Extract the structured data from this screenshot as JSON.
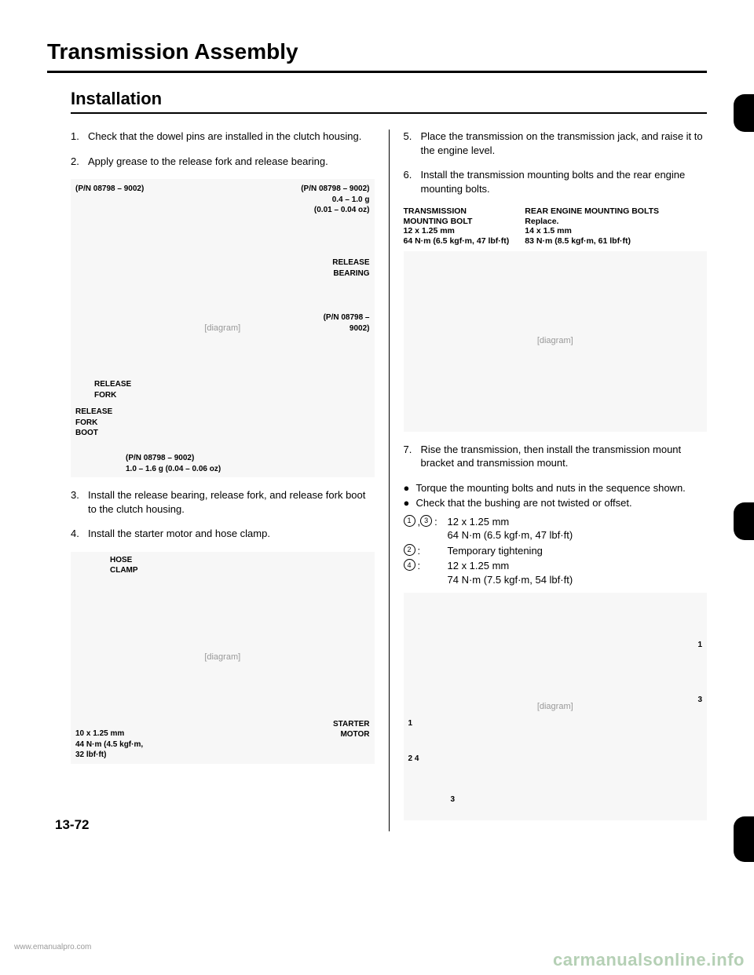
{
  "title": "Transmission Assembly",
  "section": "Installation",
  "page_number": "13-72",
  "watermark_left": "www.emanualpro.com",
  "watermark_right": "carmanualsonline.info",
  "left_steps": [
    {
      "n": "1.",
      "text": "Check that the dowel pins are installed in the clutch housing."
    },
    {
      "n": "2.",
      "text": "Apply grease to the release fork and release bearing."
    },
    {
      "n": "3.",
      "text": "Install the release bearing, release fork, and release fork boot to the clutch housing."
    },
    {
      "n": "4.",
      "text": "Install the starter motor and hose clamp."
    }
  ],
  "right_steps": [
    {
      "n": "5.",
      "text": "Place the transmission on the transmission jack, and raise it to the engine level."
    },
    {
      "n": "6.",
      "text": "Install the transmission mounting bolts and the rear engine mounting bolts."
    },
    {
      "n": "7.",
      "text": "Rise the transmission, then install the transmission mount bracket and transmission mount."
    }
  ],
  "fig1": {
    "grease_pn_a": "(P/N 08798 – 9002)",
    "grease_pn_b": "(P/N 08798 – 9002)\n0.4 – 1.0 g\n(0.01 – 0.04 oz)",
    "release_bearing": "RELEASE\nBEARING",
    "grease_pn_c": "(P/N 08798 –\n9002)",
    "release_fork": "RELEASE\nFORK",
    "release_fork_boot": "RELEASE\nFORK\nBOOT",
    "grease_pn_d": "(P/N 08798 – 9002)\n1.0 – 1.6 g (0.04 – 0.06 oz)"
  },
  "fig2": {
    "hose_clamp": "HOSE\nCLAMP",
    "starter_motor": "STARTER\nMOTOR",
    "bolt_spec": "10 x 1.25 mm\n44 N·m (4.5 kgf·m,\n32 lbf·ft)"
  },
  "fig3": {
    "trans_mount_bolt": "TRANSMISSION\nMOUNTING BOLT\n12 x 1.25 mm\n64 N·m (6.5 kgf·m, 47 lbf·ft)",
    "rear_engine_bolts": "REAR ENGINE MOUNTING BOLTS\nReplace.\n14 x 1.5 mm\n83 N·m (8.5 kgf·m, 61 lbf·ft)"
  },
  "bullets": [
    "Torque the mounting bolts and nuts in the sequence shown.",
    "Check that the bushing are not twisted or offset."
  ],
  "torque_rows": [
    {
      "marks": [
        "1",
        "3"
      ],
      "sep": ", ",
      "suffix": ":",
      "desc": "12 x 1.25 mm\n64 N·m (6.5 kgf·m, 47 lbf·ft)"
    },
    {
      "marks": [
        "2"
      ],
      "sep": "",
      "suffix": ":",
      "desc": "Temporary tightening"
    },
    {
      "marks": [
        "4"
      ],
      "sep": "",
      "suffix": ":",
      "desc": "12 x 1.25 mm\n74 N·m (7.5 kgf·m, 54 lbf·ft)"
    }
  ]
}
